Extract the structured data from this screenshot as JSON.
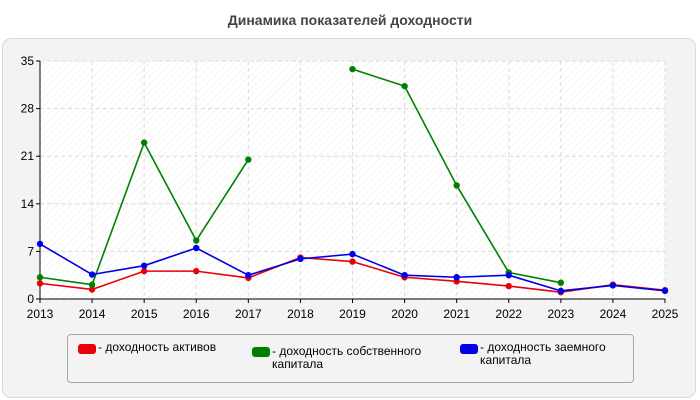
{
  "title": "Динамика показателей доходности",
  "chart_data": {
    "type": "line",
    "title": "Динамика показателей доходности",
    "xlabel": "",
    "ylabel": "",
    "x": [
      "2013",
      "2014",
      "2015",
      "2016",
      "2017",
      "2018",
      "2019",
      "2020",
      "2021",
      "2022",
      "2023",
      "2024",
      "2025"
    ],
    "ylim": [
      0,
      35
    ],
    "yticks": [
      0,
      7,
      14,
      21,
      28,
      35
    ],
    "grid": true,
    "legend_position": "bottom",
    "series": [
      {
        "name": "- доходность активов",
        "color": "#e8000b",
        "values": [
          2.3,
          1.4,
          4.1,
          4.1,
          3.1,
          6.1,
          5.5,
          3.2,
          2.6,
          1.9,
          1.0,
          2.1,
          1.3
        ]
      },
      {
        "name": "- доходность собственного капитала",
        "color": "#008000",
        "values": [
          3.2,
          2.1,
          23.0,
          8.6,
          20.5,
          null,
          33.8,
          31.3,
          16.7,
          3.9,
          2.4,
          null,
          null
        ]
      },
      {
        "name": "- доходность заемного капитала",
        "color": "#0000e6",
        "values": [
          8.1,
          3.6,
          4.9,
          7.5,
          3.5,
          5.9,
          6.6,
          3.5,
          3.2,
          3.5,
          1.2,
          2.0,
          1.2
        ]
      }
    ]
  }
}
